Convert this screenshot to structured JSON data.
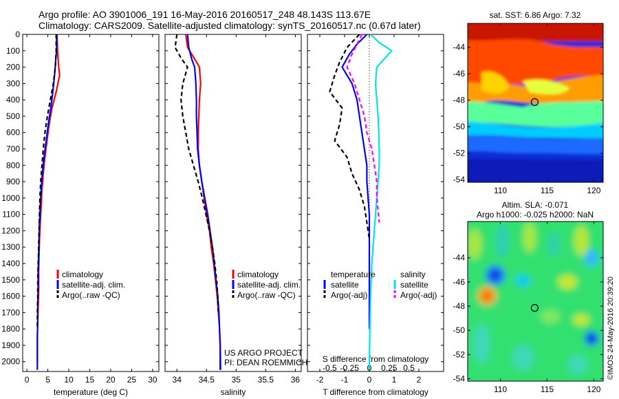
{
  "header": {
    "line1": "Argo profile: AO 3901006_191 16-May-2016 20160517_248 48.143S 113.67E",
    "line2": "Climatology: CARS2009. Satellite-adjusted climatology: synTS_20160517.nc (0.67d later)"
  },
  "colors": {
    "climatology": "#ff0000",
    "satellite": "#0000ff",
    "argo": "#000000",
    "satellite_s": "#00e5e5",
    "argo_s": "#ff00ff"
  },
  "chart_data": [
    {
      "type": "line",
      "xlabel": "temperature (deg C)",
      "xticks": [
        0,
        5,
        10,
        15,
        20,
        25,
        30
      ],
      "xlim": [
        -1,
        31.5
      ],
      "ylim": [
        0,
        2060
      ],
      "y_reversed": true,
      "yticks": [
        0,
        100,
        200,
        300,
        400,
        500,
        600,
        700,
        800,
        900,
        1000,
        1100,
        1200,
        1300,
        1400,
        1500,
        1600,
        1700,
        1800,
        1900,
        2000
      ],
      "legend": [
        "climatology",
        "satellite-adj. clim.",
        "Argo(..raw -QC)"
      ],
      "series": [
        {
          "name": "climatology",
          "color": "#ff0000",
          "style": "solid",
          "x": [
            7.2,
            7.3,
            7.6,
            7.8,
            7.0,
            6.0,
            5.3,
            4.8,
            4.3,
            3.9,
            3.6,
            3.4,
            3.2,
            3.0,
            2.9,
            2.8,
            2.8,
            2.7,
            2.6,
            2.5,
            2.5,
            2.5
          ],
          "y": [
            0,
            100,
            200,
            250,
            350,
            450,
            550,
            650,
            750,
            850,
            950,
            1050,
            1150,
            1250,
            1350,
            1450,
            1550,
            1650,
            1750,
            1850,
            1950,
            2000
          ]
        },
        {
          "name": "satellite-adj. clim.",
          "color": "#0000ff",
          "style": "solid",
          "x": [
            7.1,
            7.1,
            6.9,
            6.6,
            6.2,
            5.7,
            5.1,
            4.6,
            4.1,
            3.7,
            3.4,
            3.2,
            3.0,
            2.9,
            2.8,
            2.7,
            2.7,
            2.6,
            2.6,
            2.5,
            2.5,
            2.5,
            2.5
          ],
          "y": [
            0,
            100,
            150,
            250,
            350,
            450,
            550,
            650,
            750,
            850,
            950,
            1050,
            1150,
            1250,
            1350,
            1450,
            1550,
            1650,
            1750,
            1850,
            1950,
            2000,
            2050
          ]
        },
        {
          "name": "Argo(..raw -QC)",
          "color": "#000000",
          "style": "dashed",
          "x": [
            7.0,
            7.0,
            6.8,
            6.3,
            5.6,
            4.9,
            4.3,
            3.9,
            3.6,
            3.3,
            3.1,
            3.0,
            2.9,
            2.8,
            2.7,
            2.6,
            2.6,
            2.5,
            2.5
          ],
          "y": [
            0,
            100,
            200,
            300,
            400,
            500,
            600,
            700,
            800,
            900,
            1000,
            1100,
            1200,
            1300,
            1400,
            1500,
            1600,
            1700,
            1800
          ]
        }
      ]
    },
    {
      "type": "line",
      "xlabel": "salinity",
      "xticks": [
        34,
        34.5,
        35,
        35.5,
        36
      ],
      "xlim": [
        33.8,
        36.1
      ],
      "ylim": [
        0,
        2060
      ],
      "y_reversed": true,
      "legend": [
        "climatology",
        "satellite-adj. clim.",
        "Argo(..raw -QC)"
      ],
      "annotation": [
        "US ARGO PROJECT",
        "PI: DEAN ROEMMICH"
      ],
      "series": [
        {
          "name": "climatology",
          "color": "#ff0000",
          "style": "solid",
          "x": [
            34.15,
            34.18,
            34.3,
            34.38,
            34.4,
            34.38,
            34.37,
            34.36,
            34.36,
            34.38,
            34.42,
            34.46,
            34.5,
            34.55,
            34.58,
            34.62,
            34.65,
            34.68,
            34.7,
            34.72,
            34.73,
            34.74
          ],
          "y": [
            0,
            80,
            150,
            200,
            300,
            400,
            500,
            600,
            700,
            800,
            900,
            1000,
            1100,
            1200,
            1300,
            1400,
            1500,
            1600,
            1700,
            1800,
            1900,
            2050
          ]
        },
        {
          "name": "satellite-adj. clim.",
          "color": "#0000ff",
          "style": "solid",
          "x": [
            34.18,
            34.2,
            34.25,
            34.3,
            34.32,
            34.33,
            34.33,
            34.34,
            34.35,
            34.38,
            34.42,
            34.47,
            34.52,
            34.56,
            34.6,
            34.63,
            34.66,
            34.69,
            34.71,
            34.72,
            34.73,
            34.73
          ],
          "y": [
            0,
            80,
            150,
            200,
            300,
            400,
            500,
            600,
            700,
            800,
            900,
            1000,
            1100,
            1200,
            1300,
            1400,
            1500,
            1600,
            1700,
            1800,
            1900,
            2050
          ]
        },
        {
          "name": "Argo(..raw -QC)",
          "color": "#000000",
          "style": "dashed",
          "x": [
            34.0,
            33.97,
            34.08,
            34.18,
            34.1,
            34.07,
            34.1,
            34.15,
            34.2,
            34.28,
            34.36,
            34.43,
            34.49,
            34.55,
            34.6,
            34.64,
            34.67,
            34.69,
            34.7
          ],
          "y": [
            0,
            80,
            150,
            200,
            300,
            400,
            500,
            600,
            700,
            800,
            900,
            1000,
            1100,
            1200,
            1300,
            1400,
            1500,
            1600,
            1700
          ]
        }
      ]
    },
    {
      "type": "line",
      "xlabel": "T difference from climatology",
      "xticks": [
        -2,
        -1,
        0,
        1,
        2
      ],
      "xlim": [
        -2.5,
        3.0
      ],
      "top_label": "S difference from climatology",
      "top_ticks": [
        "-0.5",
        "-0.25",
        "0",
        "0.25",
        "0.5"
      ],
      "ylim": [
        0,
        2060
      ],
      "y_reversed": true,
      "legend_headers": [
        "temperature",
        "salinity"
      ],
      "legend": [
        "satellite",
        "Argo(-adj)",
        "satellite",
        "Argo(-adj)"
      ],
      "series": [
        {
          "name": "satellite",
          "color": "#0000ff",
          "style": "solid",
          "x": [
            -0.1,
            -0.5,
            -0.8,
            -1.1,
            -0.7,
            -0.5,
            -0.4,
            -0.3,
            -0.2,
            -0.1,
            -0.1,
            -0.05,
            0,
            0,
            0,
            0,
            0,
            0,
            0
          ],
          "y": [
            0,
            60,
            120,
            200,
            300,
            400,
            500,
            600,
            700,
            800,
            900,
            1000,
            1100,
            1200,
            1300,
            1400,
            1500,
            1600,
            1800
          ]
        },
        {
          "name": "Argo(-adj)",
          "color": "#000000",
          "style": "dashed",
          "x": [
            -0.4,
            -0.9,
            -1.2,
            -1.4,
            -1.6,
            -1.1,
            -1.2,
            -1.4,
            -0.9,
            -0.7,
            -0.4,
            -0.2,
            -0.1,
            0
          ],
          "y": [
            0,
            80,
            170,
            250,
            350,
            450,
            550,
            650,
            750,
            850,
            950,
            1050,
            1150,
            1250
          ]
        },
        {
          "name": "satellite (S)",
          "color": "#00e5e5",
          "style": "solid",
          "x": [
            0.05,
            0.4,
            0.9,
            0.6,
            0.3,
            0.25,
            0.3,
            0.35,
            0.38,
            0.4,
            0.4,
            0.35,
            0.3,
            0.2,
            0.1,
            0.05,
            0.02,
            0,
            0
          ],
          "y": [
            0,
            50,
            100,
            150,
            200,
            300,
            400,
            500,
            600,
            700,
            800,
            900,
            1000,
            1200,
            1400,
            1600,
            1800,
            2000,
            2050
          ]
        },
        {
          "name": "Argo(-adj) (S)",
          "color": "#ff00ff",
          "style": "dashed",
          "x": [
            -0.3,
            -0.5,
            -0.7,
            -0.9,
            -0.6,
            -0.4,
            -0.2,
            -0.1,
            0.1,
            0.2,
            0.3,
            0.3,
            0.4
          ],
          "y": [
            0,
            60,
            120,
            200,
            300,
            400,
            500,
            600,
            700,
            800,
            900,
            1000,
            1150
          ]
        }
      ]
    },
    {
      "type": "heatmap",
      "title": "sat. SST: 6.86 Argo: 7.32",
      "xticks": [
        110,
        115,
        120
      ],
      "yticks": [
        -44,
        -46,
        -48,
        -50,
        -52,
        -54
      ],
      "xlim": [
        106.5,
        121.0
      ],
      "ylim": [
        -54.2,
        -42.2
      ],
      "marker": {
        "lon": 113.67,
        "lat": -48.143
      }
    },
    {
      "type": "heatmap",
      "title_lines": [
        "Altim. SLA: -0.071",
        "Argo h1000: -0.025 h2000: NaN"
      ],
      "xticks": [
        110,
        115,
        120
      ],
      "yticks": [
        -44,
        -46,
        -48,
        -50,
        -52,
        -54
      ],
      "xlim": [
        106.5,
        121.0
      ],
      "ylim": [
        -54.2,
        -41.0
      ],
      "marker": {
        "lon": 113.67,
        "lat": -48.143
      }
    }
  ],
  "credit": "©IMOS 24-May-2016 20:39:20"
}
